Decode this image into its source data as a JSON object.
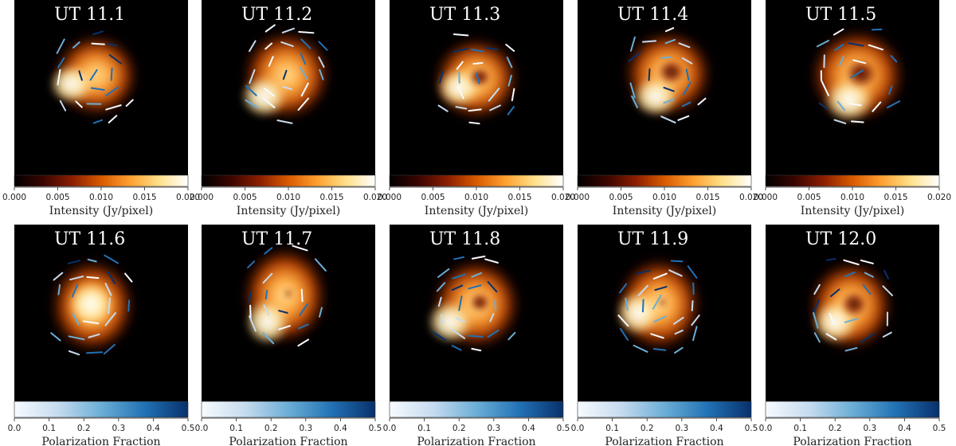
{
  "colors": {
    "background": "#000000",
    "intensity_cmap": [
      "#000000",
      "#3a0500",
      "#8b1e00",
      "#d85a00",
      "#ffa030",
      "#ffe08a",
      "#ffffff"
    ],
    "polarization_cmap": [
      "#f7fbff",
      "#c6dbef",
      "#6baed6",
      "#2171b5",
      "#08306b"
    ]
  },
  "chart_data": [
    {
      "type": "heatmap",
      "title": "UT 11.1",
      "row": 1,
      "colorbar": {
        "label": "Intensity (Jy/pixel)",
        "range": [
          0,
          0.02
        ],
        "ticks": [
          "0.000",
          "0.005",
          "0.010",
          "0.015",
          "0.020"
        ]
      }
    },
    {
      "type": "heatmap",
      "title": "UT 11.2",
      "row": 1,
      "colorbar": {
        "label": "Intensity (Jy/pixel)",
        "range": [
          0,
          0.02
        ],
        "ticks": [
          "0.000",
          "0.005",
          "0.010",
          "0.015",
          "0.020"
        ]
      }
    },
    {
      "type": "heatmap",
      "title": "UT 11.3",
      "row": 1,
      "colorbar": {
        "label": "Intensity (Jy/pixel)",
        "range": [
          0,
          0.02
        ],
        "ticks": [
          "0.000",
          "0.005",
          "0.010",
          "0.015",
          "0.020"
        ]
      }
    },
    {
      "type": "heatmap",
      "title": "UT 11.4",
      "row": 1,
      "colorbar": {
        "label": "Intensity (Jy/pixel)",
        "range": [
          0,
          0.02
        ],
        "ticks": [
          "0.000",
          "0.005",
          "0.010",
          "0.015",
          "0.020"
        ]
      }
    },
    {
      "type": "heatmap",
      "title": "UT 11.5",
      "row": 1,
      "colorbar": {
        "label": "Intensity (Jy/pixel)",
        "range": [
          0,
          0.02
        ],
        "ticks": [
          "0.000",
          "0.005",
          "0.010",
          "0.015",
          "0.020"
        ]
      }
    },
    {
      "type": "heatmap",
      "title": "UT 11.6",
      "row": 2,
      "colorbar": {
        "label": "Polarization Fraction",
        "range": [
          0,
          0.5
        ],
        "ticks": [
          "0.0",
          "0.1",
          "0.2",
          "0.3",
          "0.4",
          "0.5"
        ]
      }
    },
    {
      "type": "heatmap",
      "title": "UT 11.7",
      "row": 2,
      "colorbar": {
        "label": "Polarization Fraction",
        "range": [
          0,
          0.5
        ],
        "ticks": [
          "0.0",
          "0.1",
          "0.2",
          "0.3",
          "0.4",
          "0.5"
        ]
      }
    },
    {
      "type": "heatmap",
      "title": "UT 11.8",
      "row": 2,
      "colorbar": {
        "label": "Polarization Fraction",
        "range": [
          0,
          0.5
        ],
        "ticks": [
          "0.0",
          "0.1",
          "0.2",
          "0.3",
          "0.4",
          "0.5"
        ]
      }
    },
    {
      "type": "heatmap",
      "title": "UT 11.9",
      "row": 2,
      "colorbar": {
        "label": "Polarization Fraction",
        "range": [
          0,
          0.5
        ],
        "ticks": [
          "0.0",
          "0.1",
          "0.2",
          "0.3",
          "0.4",
          "0.5"
        ]
      }
    },
    {
      "type": "heatmap",
      "title": "UT 12.0",
      "row": 2,
      "colorbar": {
        "label": "Polarization Fraction",
        "range": [
          0,
          0.5
        ],
        "ticks": [
          "0.0",
          "0.1",
          "0.2",
          "0.3",
          "0.4",
          "0.5"
        ]
      }
    }
  ]
}
